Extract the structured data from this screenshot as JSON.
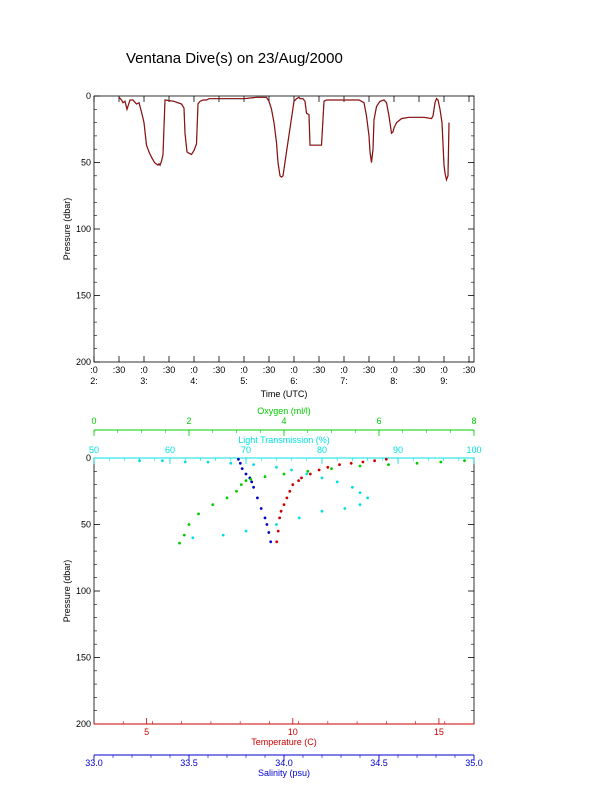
{
  "title": "Ventana Dive(s) on 23/Aug/2000",
  "colors": {
    "axis": "#000000",
    "depth_trace": "#cc0000",
    "temperature": "#cc0000",
    "salinity": "#0000cc",
    "oxygen": "#00cc00",
    "light": "#00e0e0"
  },
  "chart_data": [
    {
      "type": "line",
      "name": "time-series",
      "xlabel": "Time (UTC)",
      "ylabel": "Pressure (dbar)",
      "ylim": [
        0,
        200
      ],
      "y_reversed": true,
      "yticks": [
        "0",
        "50",
        "100",
        "150",
        "200"
      ],
      "xlim_hours": [
        2.0,
        9.6
      ],
      "xticks": [
        {
          "h": 2.0,
          "top": ":0",
          "bottom": "2:"
        },
        {
          "h": 2.5,
          "top": ":30",
          "bottom": ""
        },
        {
          "h": 3.0,
          "top": ":0",
          "bottom": "3:"
        },
        {
          "h": 3.5,
          "top": ":30",
          "bottom": ""
        },
        {
          "h": 4.0,
          "top": ":0",
          "bottom": "4:"
        },
        {
          "h": 4.5,
          "top": ":30",
          "bottom": ""
        },
        {
          "h": 5.0,
          "top": ":0",
          "bottom": "5:"
        },
        {
          "h": 5.5,
          "top": ":30",
          "bottom": ""
        },
        {
          "h": 6.0,
          "top": ":0",
          "bottom": "6:"
        },
        {
          "h": 6.5,
          "top": ":30",
          "bottom": ""
        },
        {
          "h": 7.0,
          "top": ":0",
          "bottom": "7:"
        },
        {
          "h": 7.5,
          "top": ":30",
          "bottom": ""
        },
        {
          "h": 8.0,
          "top": ":0",
          "bottom": "8:"
        },
        {
          "h": 8.5,
          "top": ":30",
          "bottom": ""
        },
        {
          "h": 9.0,
          "top": ":0",
          "bottom": "9:"
        },
        {
          "h": 9.5,
          "top": ":30",
          "bottom": ""
        }
      ],
      "series": [
        {
          "x": [
            2.5,
            2.55,
            2.58,
            2.62,
            2.66,
            2.72,
            2.78,
            2.85,
            2.9,
            2.95,
            3.0,
            3.05,
            3.1,
            3.15,
            3.18,
            3.21,
            3.24,
            3.28,
            3.3,
            3.32,
            3.35,
            3.38,
            3.42,
            3.6,
            3.75,
            3.8,
            3.82,
            3.86,
            3.9,
            3.95,
            4.0,
            4.05,
            4.08,
            4.12,
            4.18,
            4.25,
            4.3,
            4.35,
            4.4,
            4.5,
            4.75,
            5.0,
            5.25,
            5.45,
            5.5,
            5.55,
            5.6,
            5.65,
            5.68,
            5.72,
            5.75,
            5.78,
            5.85,
            6.0,
            6.05,
            6.1,
            6.12,
            6.18,
            6.22,
            6.25,
            6.3,
            6.32,
            6.35,
            6.45,
            6.55,
            6.6,
            6.65,
            6.7,
            6.8,
            6.9,
            7.0,
            7.1,
            7.2,
            7.3,
            7.4,
            7.45,
            7.5,
            7.52,
            7.55,
            7.58,
            7.6,
            7.65,
            7.72,
            7.8,
            7.85,
            7.9,
            7.95,
            7.98,
            8.0,
            8.05,
            8.15,
            8.3,
            8.5,
            8.6,
            8.75,
            8.78,
            8.82,
            8.85,
            8.88,
            8.92,
            8.96,
            9.0,
            9.02,
            9.05,
            9.08,
            9.1
          ],
          "y": [
            1,
            3,
            5,
            4,
            10,
            3,
            3,
            6,
            5,
            12,
            20,
            37,
            42,
            46,
            48,
            50,
            51,
            52,
            51,
            52,
            49,
            44,
            3,
            4,
            6,
            9,
            28,
            42,
            43,
            44,
            41,
            36,
            6,
            4,
            3,
            3,
            2,
            2,
            2,
            2,
            2,
            2,
            1,
            1,
            4,
            10,
            20,
            35,
            50,
            60,
            61,
            60,
            42,
            4,
            2,
            1,
            2,
            2,
            4,
            13,
            14,
            37,
            37,
            37,
            37,
            4,
            3,
            3,
            3,
            3,
            3,
            3,
            3,
            3,
            5,
            15,
            30,
            42,
            50,
            40,
            18,
            8,
            4,
            3,
            5,
            15,
            28,
            27,
            24,
            20,
            17,
            16,
            16,
            16,
            17,
            15,
            5,
            2,
            3,
            10,
            20,
            52,
            58,
            63,
            60,
            20
          ]
        }
      ]
    },
    {
      "type": "scatter",
      "name": "profiles",
      "ylabel": "Pressure (dbar)",
      "ylim": [
        0,
        200
      ],
      "y_reversed": true,
      "yticks": [
        "0",
        "50",
        "100",
        "150",
        "200"
      ],
      "axes": {
        "oxygen": {
          "label": "Oxygen (ml/l)",
          "range": [
            0,
            8
          ],
          "ticks": [
            "0",
            "2",
            "4",
            "6",
            "8"
          ],
          "minor": 0.5
        },
        "light": {
          "label": "Light Transmission (%)",
          "range": [
            50,
            100
          ],
          "ticks": [
            "50",
            "60",
            "70",
            "80",
            "90",
            "100"
          ],
          "minor": 2
        },
        "temperature": {
          "label": "Temperature (C)",
          "range": [
            3.2,
            16.2
          ],
          "ticks": [
            "5",
            "10",
            "15"
          ],
          "tick_values": [
            5,
            10,
            15
          ],
          "minor": 1
        },
        "salinity": {
          "label": "Salinity (psu)",
          "range": [
            33.0,
            35.0
          ],
          "ticks": [
            "33.0",
            "33.5",
            "34.0",
            "34.5",
            "35.0"
          ],
          "minor": 0.1
        }
      },
      "series": [
        {
          "name": "Temperature",
          "axis": "temperature",
          "color_key": "temperature",
          "x": [
            13.2,
            12.8,
            12.4,
            12.0,
            11.6,
            11.2,
            10.9,
            10.6,
            10.3,
            10.2,
            10.0,
            9.9,
            9.8,
            9.7,
            9.6,
            9.55,
            9.5,
            9.45
          ],
          "y": [
            1,
            2,
            3,
            4,
            5,
            7,
            9,
            12,
            15,
            17,
            20,
            25,
            30,
            35,
            40,
            45,
            55,
            63
          ]
        },
        {
          "name": "Salinity",
          "axis": "salinity",
          "color_key": "salinity",
          "x": [
            33.76,
            33.77,
            33.78,
            33.8,
            33.82,
            33.83,
            33.84,
            33.86,
            33.88,
            33.9,
            33.91,
            33.92,
            33.93
          ],
          "y": [
            1,
            4,
            8,
            12,
            15,
            18,
            22,
            30,
            38,
            45,
            50,
            56,
            63
          ]
        },
        {
          "name": "Oxygen",
          "axis": "oxygen",
          "color_key": "oxygen",
          "x": [
            7.8,
            7.3,
            6.8,
            6.2,
            5.6,
            5.0,
            4.5,
            4.0,
            3.6,
            3.3,
            3.2,
            3.1,
            3.0,
            2.8,
            2.5,
            2.2,
            2.0,
            1.9,
            1.8
          ],
          "y": [
            2,
            3,
            4,
            5,
            6,
            8,
            10,
            12,
            14,
            16,
            17,
            20,
            25,
            30,
            35,
            42,
            50,
            58,
            64
          ]
        },
        {
          "name": "Light Transmission",
          "axis": "light",
          "color_key": "light",
          "x": [
            56,
            59,
            62,
            65,
            68,
            71,
            74,
            76,
            78,
            80,
            82,
            84,
            85,
            86,
            85,
            83,
            80,
            77,
            74,
            70,
            67,
            63
          ],
          "y": [
            2,
            2,
            3,
            3,
            4,
            5,
            7,
            9,
            12,
            15,
            18,
            22,
            26,
            30,
            35,
            38,
            40,
            45,
            50,
            55,
            58,
            60
          ]
        }
      ]
    }
  ]
}
